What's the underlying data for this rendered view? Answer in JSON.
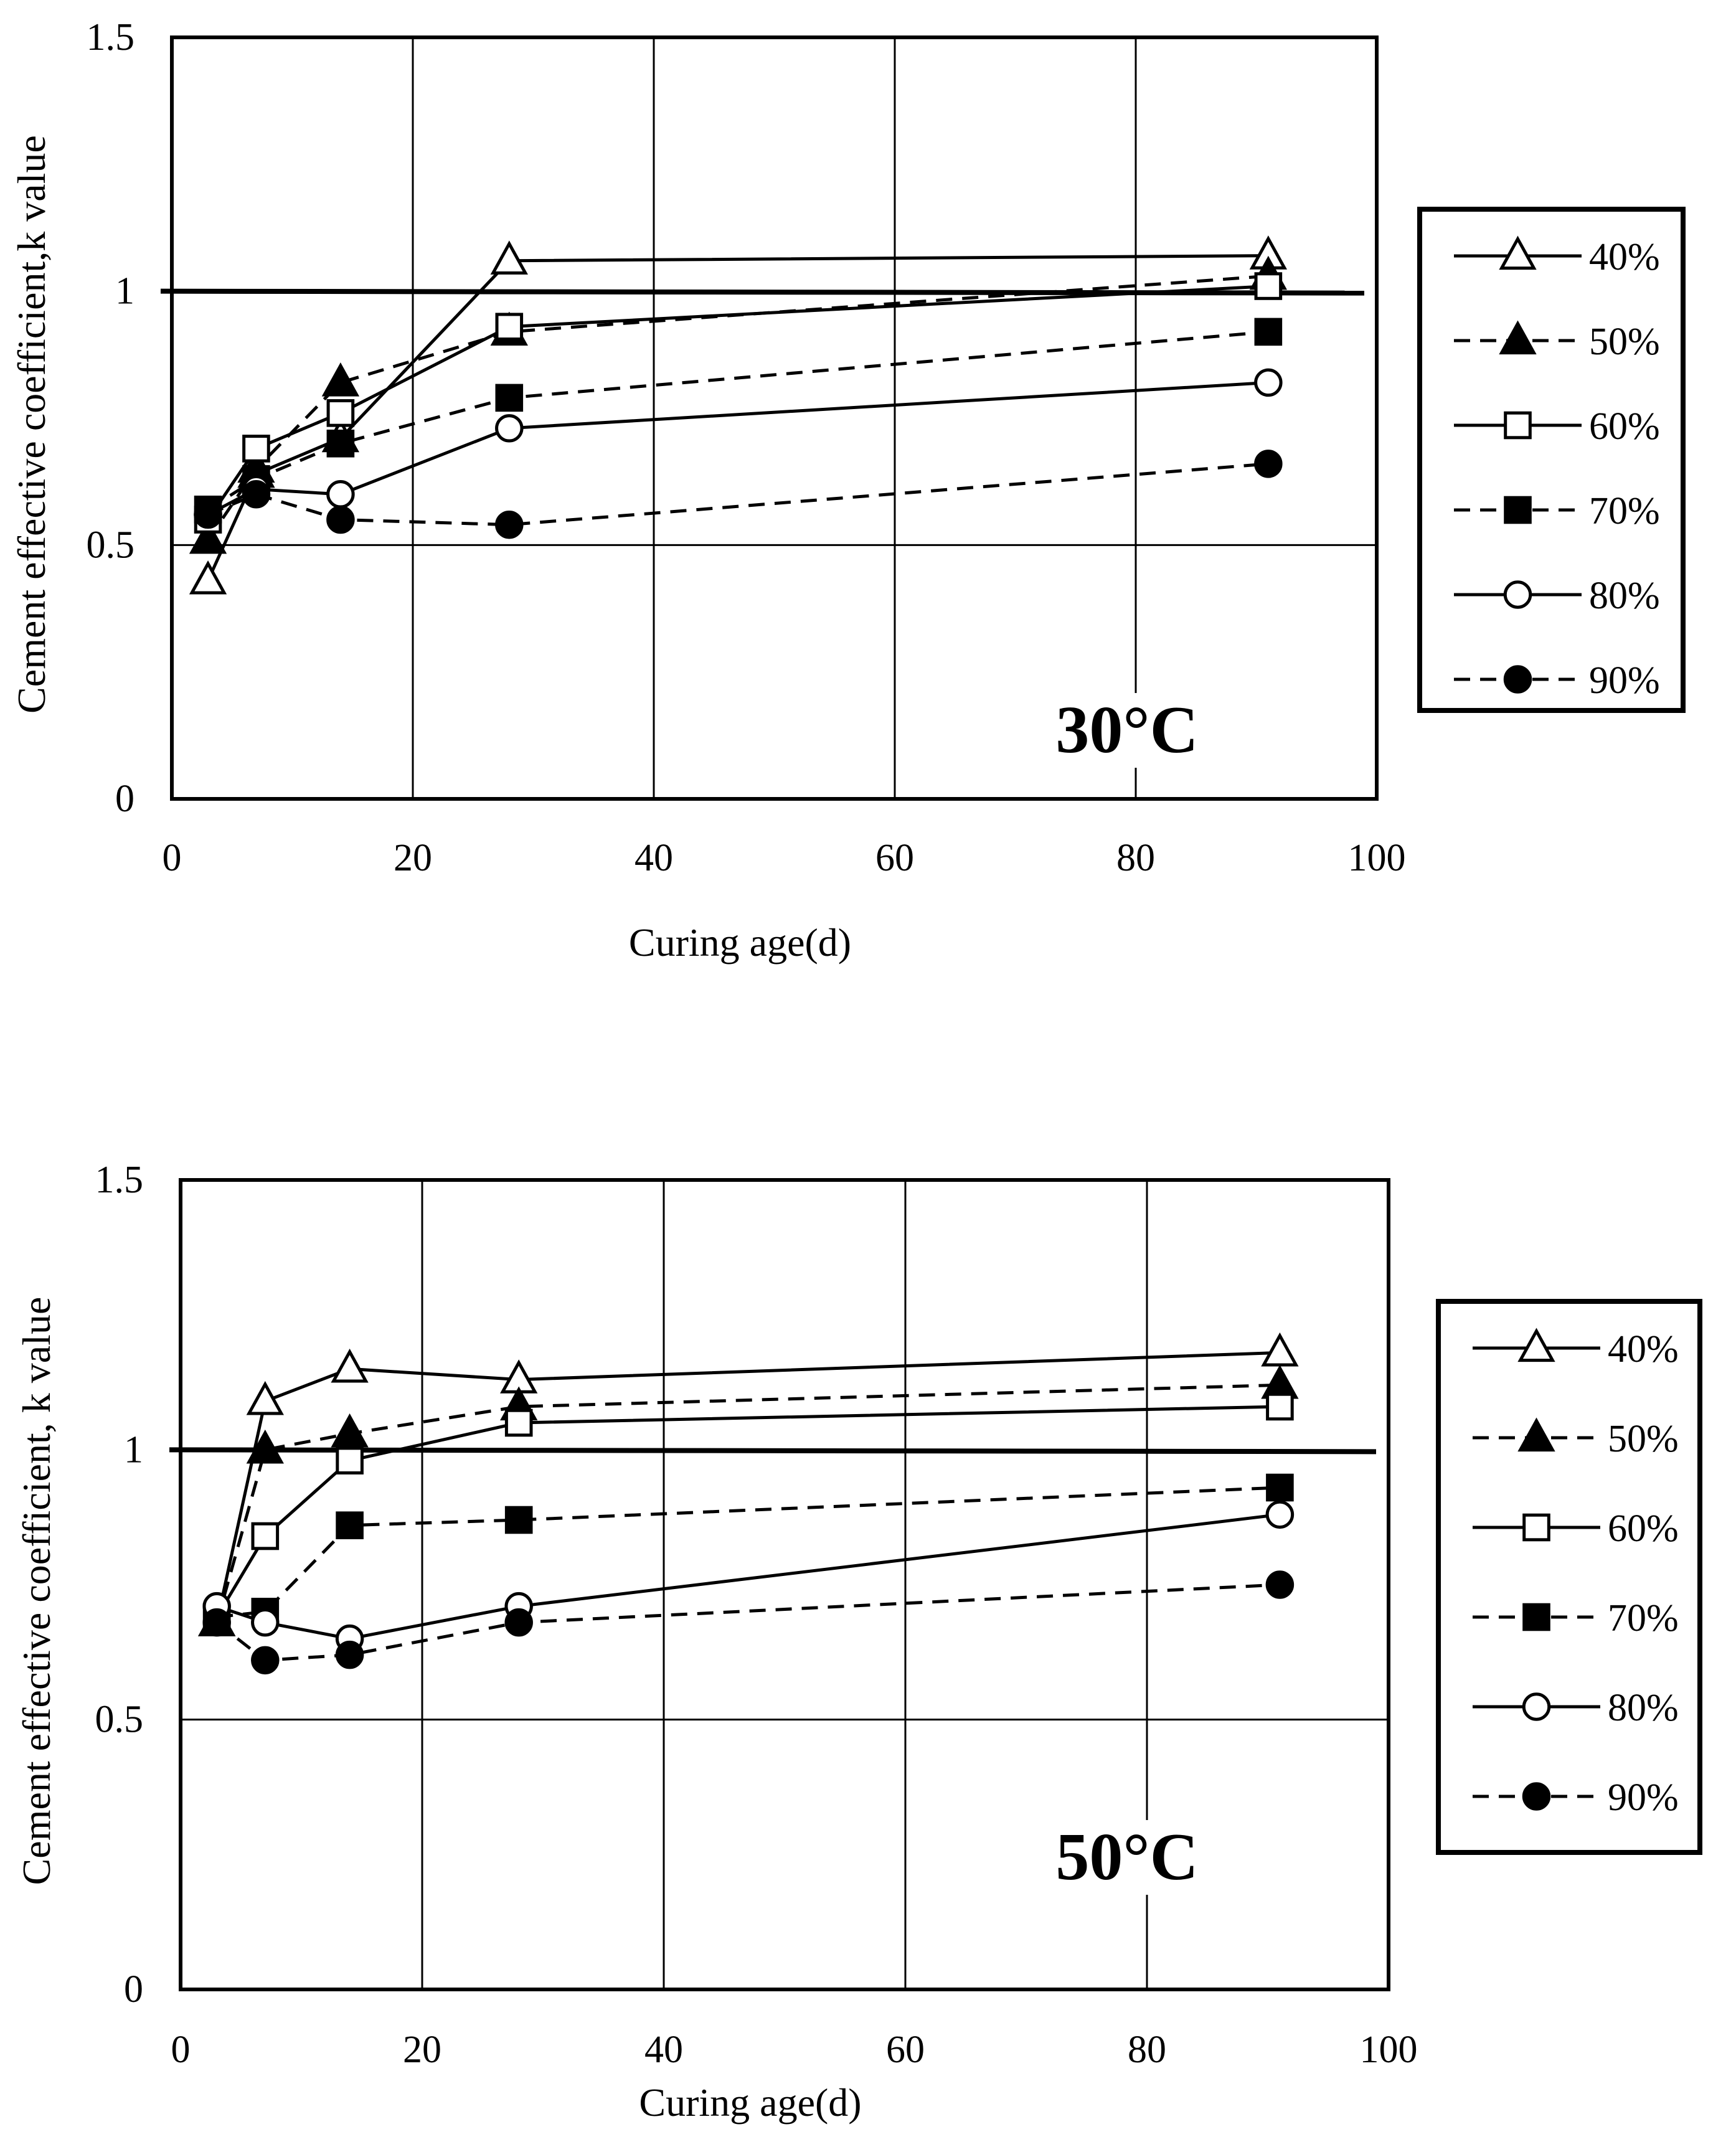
{
  "chart_data": [
    {
      "type": "line",
      "annotation": "30°C",
      "xlabel": "Curing age(d)",
      "ylabel": "Cement effective coefficient,k value",
      "xlim": [
        0,
        100
      ],
      "ylim": [
        0,
        1.5
      ],
      "xticks": [
        "0",
        "20",
        "40",
        "60",
        "80",
        "100"
      ],
      "yticks": [
        "0",
        "0.5",
        "1",
        "1.5"
      ],
      "grid": true,
      "reference_line": 1,
      "legend_position": "right",
      "x": [
        3,
        7,
        14,
        28,
        91
      ],
      "series": [
        {
          "name": "40%",
          "marker": "triangle-open",
          "dash": false,
          "values": [
            0.43,
            0.64,
            0.71,
            1.06,
            1.07
          ]
        },
        {
          "name": "50%",
          "marker": "triangle-filled",
          "dash": true,
          "values": [
            0.51,
            0.65,
            0.82,
            0.92,
            1.03
          ]
        },
        {
          "name": "60%",
          "marker": "square-open",
          "dash": false,
          "values": [
            0.55,
            0.69,
            0.76,
            0.93,
            1.01
          ]
        },
        {
          "name": "70%",
          "marker": "square-filled",
          "dash": true,
          "values": [
            0.57,
            0.63,
            0.7,
            0.79,
            0.92
          ]
        },
        {
          "name": "80%",
          "marker": "circle-open",
          "dash": false,
          "values": [
            0.56,
            0.61,
            0.6,
            0.73,
            0.82
          ]
        },
        {
          "name": "90%",
          "marker": "circle-filled",
          "dash": true,
          "values": [
            0.56,
            0.6,
            0.55,
            0.54,
            0.66
          ]
        }
      ]
    },
    {
      "type": "line",
      "annotation": "50°C",
      "xlabel": "Curing age(d)",
      "ylabel": "Cement effective coefficient, k value",
      "xlim": [
        0,
        100
      ],
      "ylim": [
        0,
        1.5
      ],
      "xticks": [
        "0",
        "20",
        "40",
        "60",
        "80",
        "100"
      ],
      "yticks": [
        "0",
        "0.5",
        "1",
        "1.5"
      ],
      "grid": true,
      "reference_line": 1,
      "legend_position": "right",
      "x": [
        3,
        7,
        14,
        28,
        91
      ],
      "series": [
        {
          "name": "40%",
          "marker": "triangle-open",
          "dash": false,
          "values": [
            0.68,
            1.09,
            1.15,
            1.13,
            1.18
          ]
        },
        {
          "name": "50%",
          "marker": "triangle-filled",
          "dash": true,
          "values": [
            0.68,
            1.0,
            1.03,
            1.08,
            1.12
          ]
        },
        {
          "name": "60%",
          "marker": "square-open",
          "dash": false,
          "values": [
            0.69,
            0.84,
            0.98,
            1.05,
            1.08
          ]
        },
        {
          "name": "70%",
          "marker": "square-filled",
          "dash": true,
          "values": [
            0.69,
            0.7,
            0.86,
            0.87,
            0.93
          ]
        },
        {
          "name": "80%",
          "marker": "circle-open",
          "dash": false,
          "values": [
            0.71,
            0.68,
            0.65,
            0.71,
            0.88
          ]
        },
        {
          "name": "90%",
          "marker": "circle-filled",
          "dash": true,
          "values": [
            0.68,
            0.61,
            0.62,
            0.68,
            0.75
          ]
        }
      ]
    }
  ]
}
